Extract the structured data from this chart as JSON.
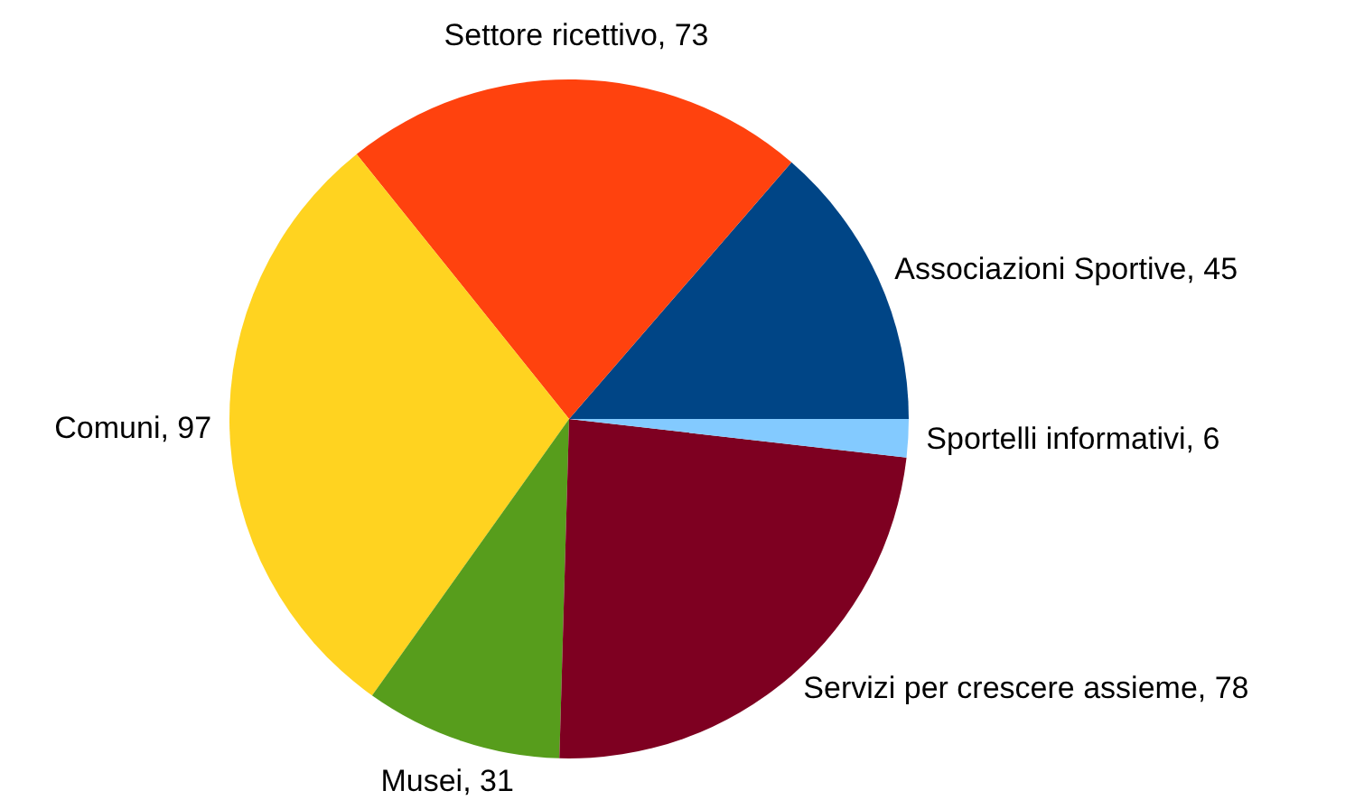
{
  "chart_data": {
    "type": "pie",
    "categories": [
      "Associazioni Sportive",
      "Settore ricettivo",
      "Comuni",
      "Musei",
      "Servizi per crescere assieme",
      "Sportelli informativi"
    ],
    "values": [
      45,
      73,
      97,
      31,
      78,
      6
    ],
    "colors": [
      "#004586",
      "#ff420e",
      "#ffd320",
      "#579d1c",
      "#7e0021",
      "#83caff"
    ],
    "value_labels": [
      ", 45",
      ", 73",
      ", 97",
      ", 31",
      ", 78",
      ", 6"
    ]
  }
}
